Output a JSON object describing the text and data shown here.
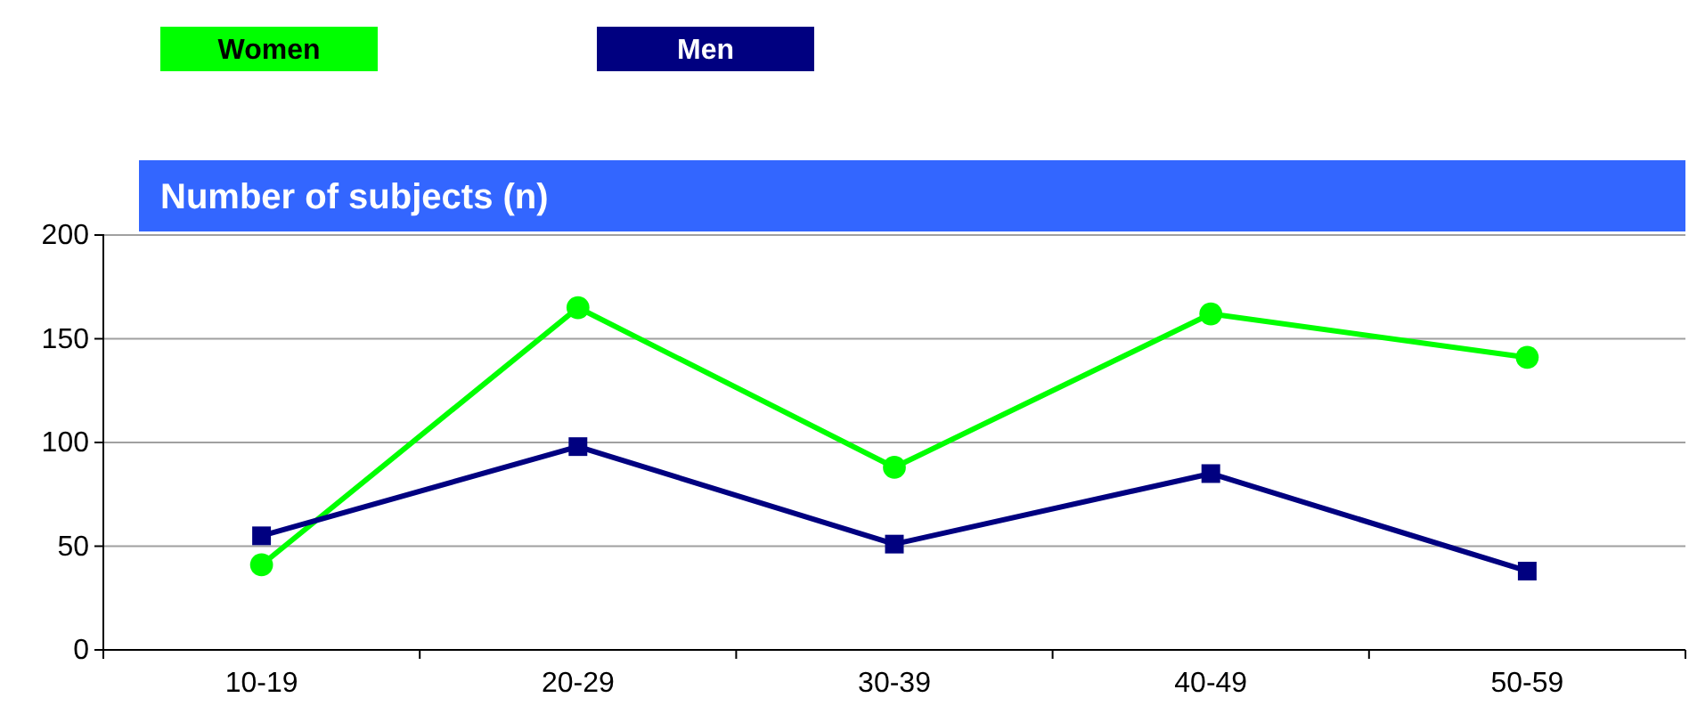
{
  "chart_data": {
    "type": "line",
    "title": "Number of subjects (n)",
    "categories": [
      "10-19",
      "20-29",
      "30-39",
      "40-49",
      "50-59"
    ],
    "series": [
      {
        "name": "Women",
        "color": "#00ff00",
        "marker": "circle",
        "values": [
          41,
          165,
          88,
          162,
          141
        ]
      },
      {
        "name": "Men",
        "color": "#000080",
        "marker": "square",
        "values": [
          55,
          98,
          51,
          85,
          38
        ]
      }
    ],
    "ylim": [
      0,
      200
    ],
    "yticks": [
      0,
      50,
      100,
      150,
      200
    ],
    "grid": "y",
    "legend": "top left"
  }
}
